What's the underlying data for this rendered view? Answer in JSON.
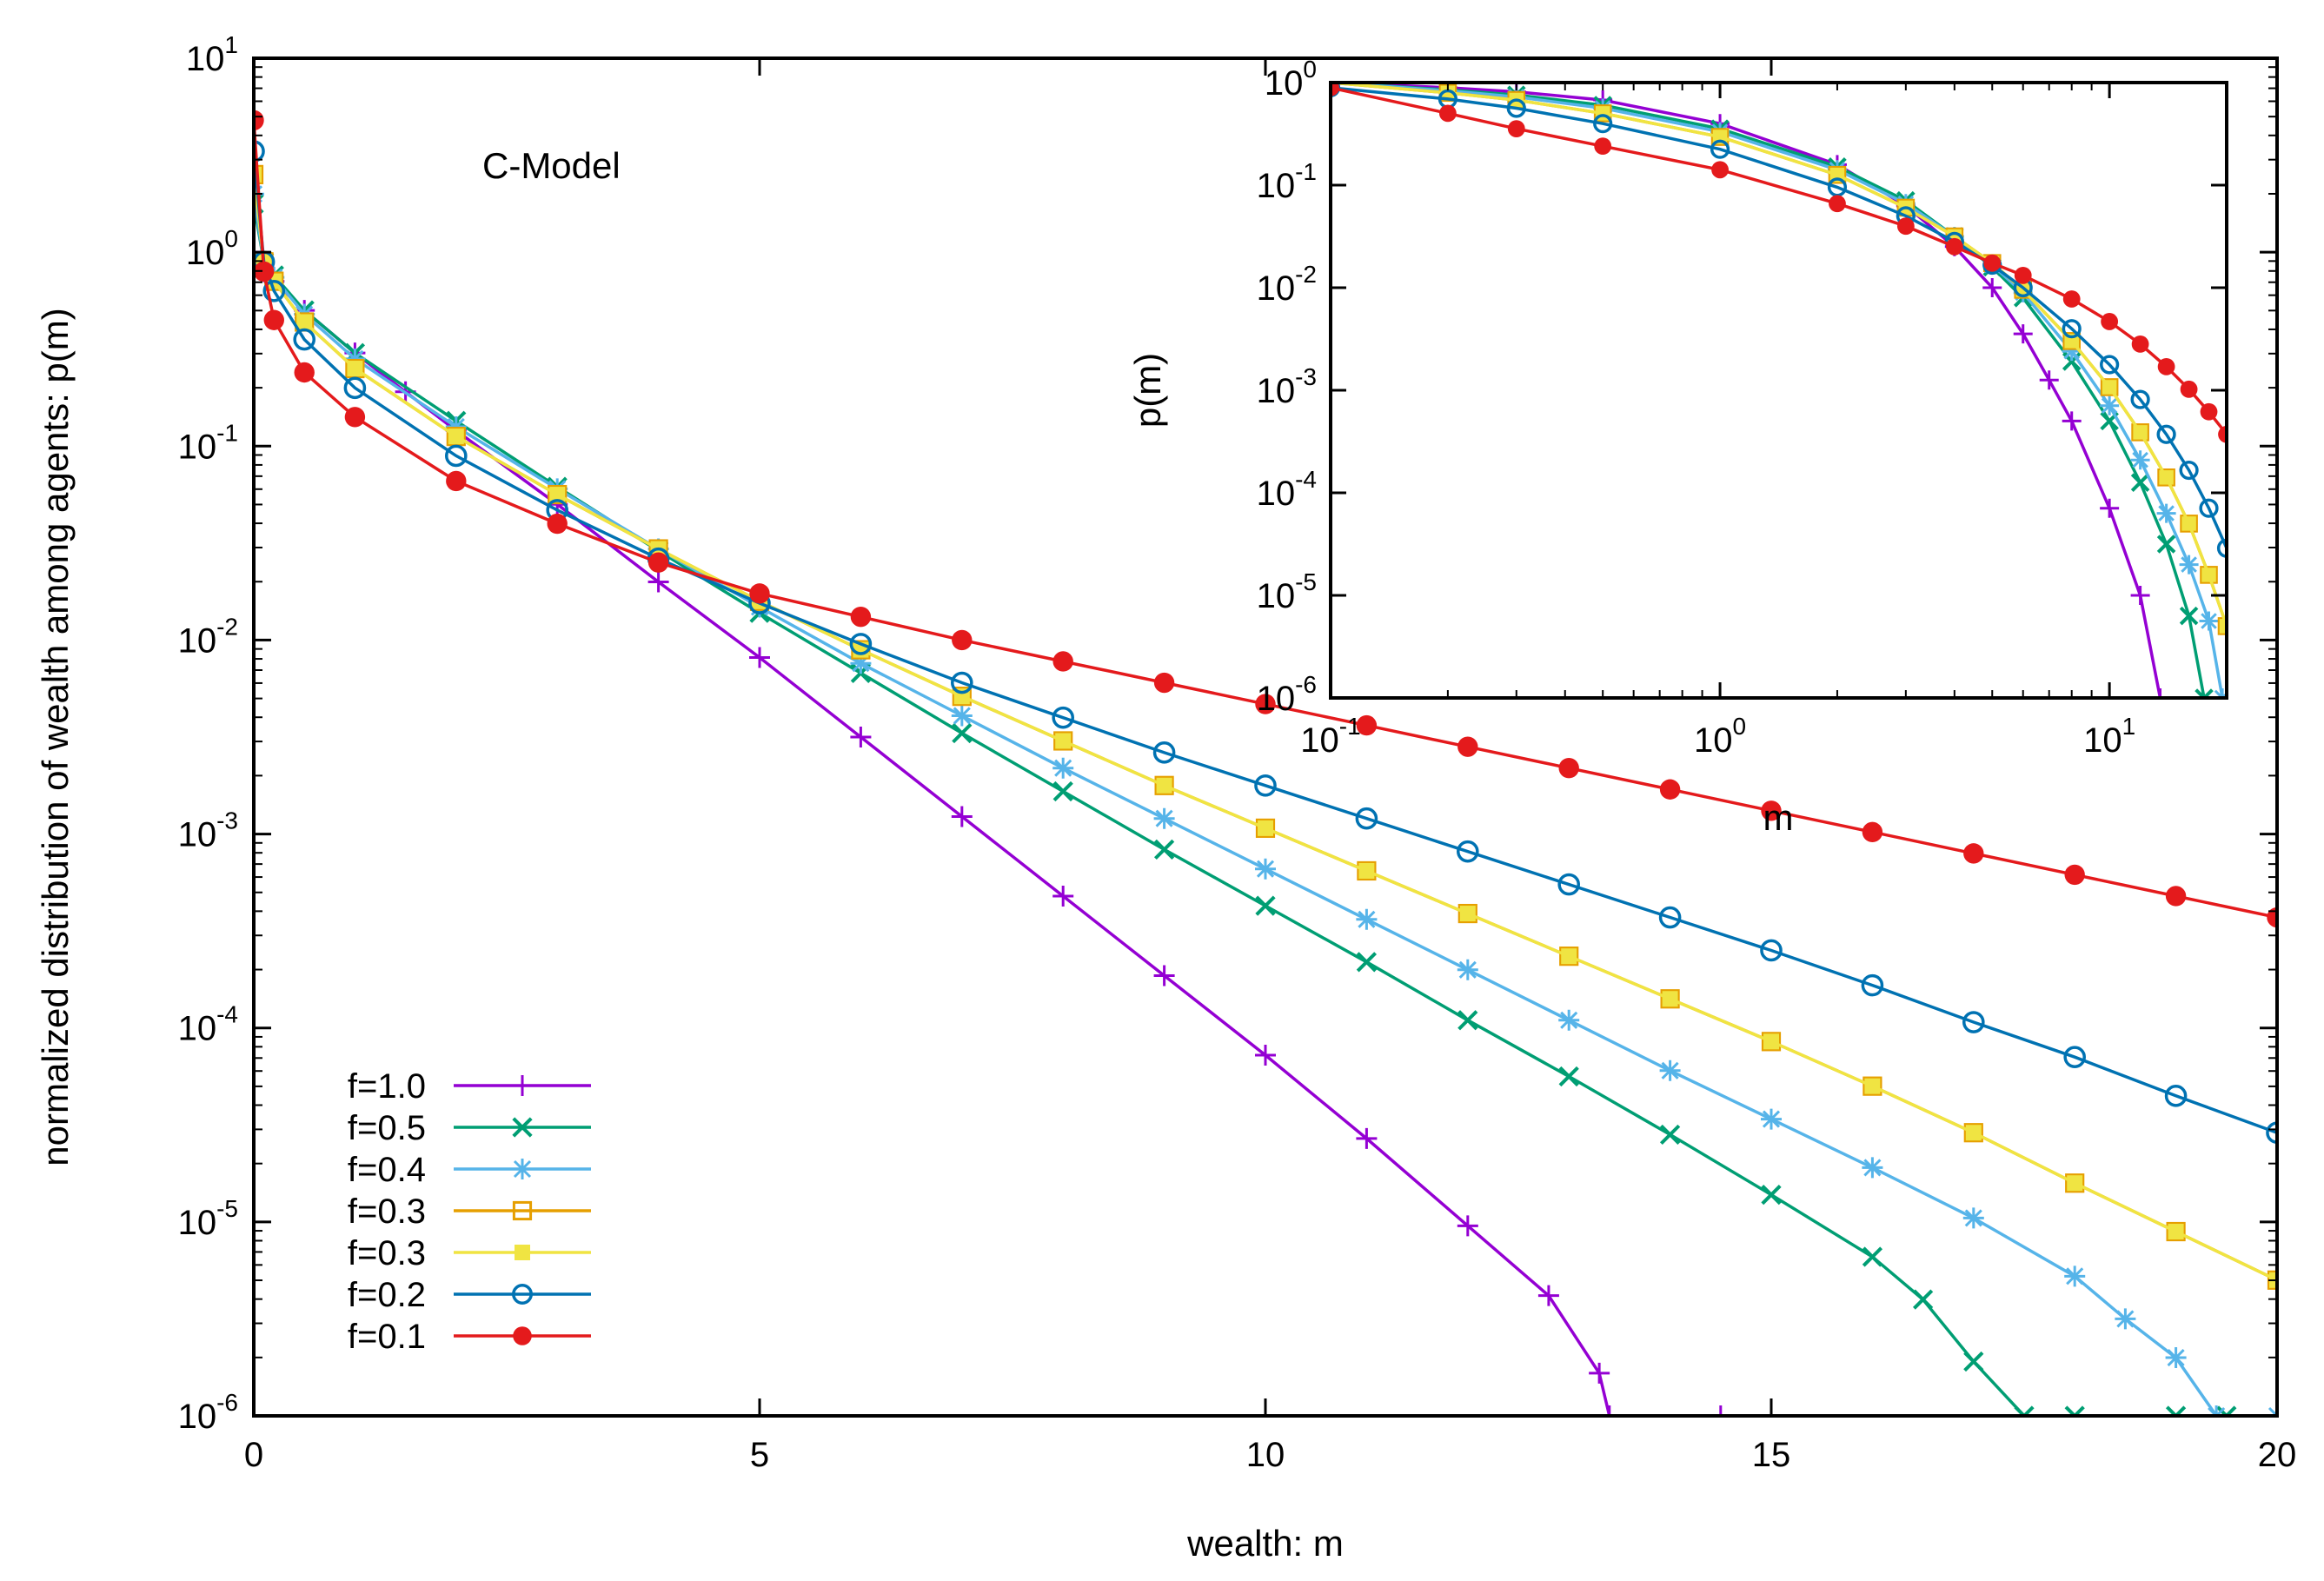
{
  "chart_data": [
    {
      "type": "line",
      "role": "main",
      "title": "",
      "annotation": "C-Model",
      "xlabel": "wealth: m",
      "ylabel": "normalized distribution of wealth among agents: p(m)",
      "xlim": [
        0,
        20
      ],
      "ylim_log10": [
        -6,
        1
      ],
      "yscale": "log",
      "xticks": [
        "0",
        "5",
        "10",
        "15",
        "20"
      ],
      "yticks_exp": [
        "1",
        "0",
        "-1",
        "-2",
        "-3",
        "-4",
        "-5",
        "-6"
      ],
      "ytick_base": "10",
      "grid": false,
      "legend_position": "bottom-left",
      "series": [
        {
          "name": "f=1.0",
          "color": "#9400d3",
          "marker": "plus",
          "x": [
            0,
            0.1,
            0.2,
            0.5,
            1,
            1.5,
            2,
            3,
            4,
            5,
            6,
            7,
            8,
            9,
            10,
            11,
            12,
            12.8,
            13.3,
            13.4,
            14.5
          ],
          "log10": [
            0.0,
            -0.08,
            -0.15,
            -0.3,
            -0.52,
            -0.72,
            -0.92,
            -1.3,
            -1.7,
            -2.09,
            -2.5,
            -2.91,
            -3.32,
            -3.73,
            -4.14,
            -4.57,
            -5.02,
            -5.38,
            -5.78,
            -6.0,
            -6.0
          ]
        },
        {
          "name": "f=0.5",
          "color": "#009e73",
          "marker": "cross",
          "x": [
            0,
            0.1,
            0.2,
            0.5,
            1,
            2,
            3,
            4,
            5,
            6,
            7,
            8,
            9,
            10,
            11,
            12,
            13,
            14,
            15,
            16,
            16.5,
            17,
            17.5,
            18,
            19,
            19.5
          ],
          "log10": [
            0.25,
            -0.05,
            -0.12,
            -0.3,
            -0.52,
            -0.87,
            -1.21,
            -1.54,
            -1.86,
            -2.17,
            -2.48,
            -2.78,
            -3.08,
            -3.37,
            -3.66,
            -3.96,
            -4.25,
            -4.55,
            -4.86,
            -5.18,
            -5.4,
            -5.72,
            -6.0,
            -6.0,
            -6.0,
            -6.0
          ]
        },
        {
          "name": "f=0.4",
          "color": "#56b4e9",
          "marker": "star",
          "x": [
            0,
            0.1,
            0.2,
            0.5,
            1,
            2,
            3,
            4,
            5,
            6,
            7,
            8,
            9,
            10,
            11,
            12,
            13,
            14,
            15,
            16,
            17,
            18,
            18.5,
            19,
            19.4,
            20
          ],
          "log10": [
            0.3,
            -0.05,
            -0.13,
            -0.32,
            -0.55,
            -0.9,
            -1.22,
            -1.53,
            -1.83,
            -2.12,
            -2.39,
            -2.66,
            -2.92,
            -3.18,
            -3.44,
            -3.7,
            -3.96,
            -4.22,
            -4.47,
            -4.72,
            -4.98,
            -5.28,
            -5.5,
            -5.7,
            -6.0,
            -6.0
          ]
        },
        {
          "name": "f=0.3",
          "color": "#e69f00",
          "marker": "square-open",
          "x": [
            0,
            0.1,
            0.2,
            0.5,
            1,
            2,
            3,
            4,
            5,
            6,
            7,
            8,
            9,
            10,
            11,
            12,
            13,
            14,
            15,
            16,
            17,
            18,
            19,
            20
          ],
          "log10": [
            0.4,
            -0.05,
            -0.15,
            -0.36,
            -0.6,
            -0.95,
            -1.25,
            -1.53,
            -1.8,
            -2.05,
            -2.29,
            -2.52,
            -2.75,
            -2.97,
            -3.19,
            -3.41,
            -3.63,
            -3.85,
            -4.07,
            -4.3,
            -4.54,
            -4.8,
            -5.05,
            -5.3
          ]
        },
        {
          "name": "f=0.3",
          "color": "#f0e442",
          "marker": "square-filled",
          "x": [
            0,
            0.1,
            0.2,
            0.5,
            1,
            2,
            3,
            4,
            5,
            6,
            7,
            8,
            9,
            10,
            11,
            12,
            13,
            14,
            15,
            16,
            17,
            18,
            19,
            20
          ],
          "log10": [
            0.4,
            -0.05,
            -0.15,
            -0.36,
            -0.6,
            -0.95,
            -1.25,
            -1.53,
            -1.8,
            -2.05,
            -2.29,
            -2.52,
            -2.75,
            -2.97,
            -3.19,
            -3.41,
            -3.63,
            -3.85,
            -4.07,
            -4.3,
            -4.54,
            -4.8,
            -5.05,
            -5.3
          ]
        },
        {
          "name": "f=0.2",
          "color": "#0072b2",
          "marker": "circle-open",
          "x": [
            0,
            0.1,
            0.2,
            0.5,
            1,
            2,
            3,
            4,
            5,
            6,
            7,
            8,
            9,
            10,
            11,
            12,
            13,
            14,
            15,
            16,
            17,
            18,
            19,
            20
          ],
          "log10": [
            0.52,
            -0.05,
            -0.2,
            -0.45,
            -0.7,
            -1.05,
            -1.33,
            -1.58,
            -1.81,
            -2.02,
            -2.22,
            -2.4,
            -2.58,
            -2.75,
            -2.92,
            -3.09,
            -3.26,
            -3.43,
            -3.6,
            -3.78,
            -3.97,
            -4.15,
            -4.35,
            -4.54
          ]
        },
        {
          "name": "f=0.1",
          "color": "#e41a1c",
          "marker": "circle-filled",
          "x": [
            0,
            0.1,
            0.2,
            0.5,
            1,
            2,
            3,
            4,
            5,
            6,
            7,
            8,
            9,
            10,
            11,
            12,
            13,
            14,
            15,
            16,
            17,
            18,
            19,
            20
          ],
          "log10": [
            0.68,
            -0.1,
            -0.35,
            -0.62,
            -0.85,
            -1.18,
            -1.4,
            -1.6,
            -1.76,
            -1.88,
            -2.0,
            -2.11,
            -2.22,
            -2.33,
            -2.44,
            -2.55,
            -2.66,
            -2.77,
            -2.88,
            -2.99,
            -3.1,
            -3.21,
            -3.32,
            -3.43
          ]
        }
      ]
    },
    {
      "type": "line",
      "role": "inset",
      "title": "",
      "xlabel": "m",
      "ylabel": "p(m)",
      "xscale": "log",
      "yscale": "log",
      "xlim_log10": [
        -1,
        1.301
      ],
      "ylim_log10": [
        -6,
        0
      ],
      "xticks_exp": [
        "-1",
        "0",
        "1"
      ],
      "yticks_exp": [
        "0",
        "-1",
        "-2",
        "-3",
        "-4",
        "-5",
        "-6"
      ],
      "tick_base": "10",
      "grid": false,
      "series": [
        {
          "name": "f=1.0",
          "color": "#9400d3",
          "marker": "plus",
          "x": [
            0.1,
            0.2,
            0.3,
            0.5,
            1,
            2,
            3,
            4,
            5,
            6,
            7,
            8,
            10,
            12,
            13.5
          ],
          "log10": [
            0.0,
            -0.05,
            -0.09,
            -0.17,
            -0.4,
            -0.8,
            -1.2,
            -1.6,
            -2.0,
            -2.45,
            -2.9,
            -3.3,
            -4.15,
            -5.0,
            -6.0
          ]
        },
        {
          "name": "f=0.5",
          "color": "#009e73",
          "marker": "cross",
          "x": [
            0.1,
            0.2,
            0.3,
            0.5,
            1,
            2,
            3,
            4,
            5,
            6,
            8,
            10,
            12,
            14,
            16,
            17.5
          ],
          "log10": [
            0.0,
            -0.07,
            -0.12,
            -0.22,
            -0.45,
            -0.82,
            -1.15,
            -1.5,
            -1.8,
            -2.1,
            -2.72,
            -3.3,
            -3.9,
            -4.5,
            -5.2,
            -6.0
          ]
        },
        {
          "name": "f=0.4",
          "color": "#56b4e9",
          "marker": "star",
          "x": [
            0.1,
            0.2,
            0.3,
            0.5,
            1,
            2,
            3,
            4,
            5,
            6,
            8,
            10,
            12,
            14,
            16,
            18,
            19.5
          ],
          "log10": [
            0.0,
            -0.08,
            -0.14,
            -0.25,
            -0.48,
            -0.85,
            -1.18,
            -1.5,
            -1.78,
            -2.05,
            -2.62,
            -3.15,
            -3.68,
            -4.2,
            -4.7,
            -5.25,
            -6.0
          ]
        },
        {
          "name": "f=0.3",
          "color": "#e69f00",
          "marker": "square-open",
          "x": [
            0.1,
            0.2,
            0.3,
            0.5,
            1,
            2,
            3,
            4,
            5,
            6,
            8,
            10,
            12,
            14,
            16,
            18,
            20
          ],
          "log10": [
            0.0,
            -0.1,
            -0.17,
            -0.3,
            -0.53,
            -0.9,
            -1.22,
            -1.5,
            -1.76,
            -2.02,
            -2.52,
            -2.97,
            -3.41,
            -3.85,
            -4.3,
            -4.8,
            -5.3
          ]
        },
        {
          "name": "f=0.3",
          "color": "#f0e442",
          "marker": "square-filled",
          "x": [
            0.1,
            0.2,
            0.3,
            0.5,
            1,
            2,
            3,
            4,
            5,
            6,
            8,
            10,
            12,
            14,
            16,
            18,
            20
          ],
          "log10": [
            0.0,
            -0.1,
            -0.17,
            -0.3,
            -0.53,
            -0.9,
            -1.22,
            -1.5,
            -1.76,
            -2.02,
            -2.52,
            -2.97,
            -3.41,
            -3.85,
            -4.3,
            -4.8,
            -5.3
          ]
        },
        {
          "name": "f=0.2",
          "color": "#0072b2",
          "marker": "circle-open",
          "x": [
            0.1,
            0.2,
            0.3,
            0.5,
            1,
            2,
            3,
            4,
            5,
            6,
            8,
            10,
            12,
            14,
            16,
            18,
            20
          ],
          "log10": [
            -0.05,
            -0.16,
            -0.25,
            -0.4,
            -0.65,
            -1.02,
            -1.3,
            -1.55,
            -1.78,
            -2.0,
            -2.4,
            -2.75,
            -3.09,
            -3.43,
            -3.78,
            -4.15,
            -4.54
          ]
        },
        {
          "name": "f=0.1",
          "color": "#e41a1c",
          "marker": "circle-filled",
          "x": [
            0.1,
            0.2,
            0.3,
            0.5,
            1,
            2,
            3,
            4,
            5,
            6,
            8,
            10,
            12,
            14,
            16,
            18,
            20
          ],
          "log10": [
            -0.05,
            -0.3,
            -0.45,
            -0.62,
            -0.85,
            -1.18,
            -1.4,
            -1.6,
            -1.76,
            -1.88,
            -2.11,
            -2.33,
            -2.55,
            -2.77,
            -2.99,
            -3.21,
            -3.43
          ]
        }
      ]
    }
  ]
}
